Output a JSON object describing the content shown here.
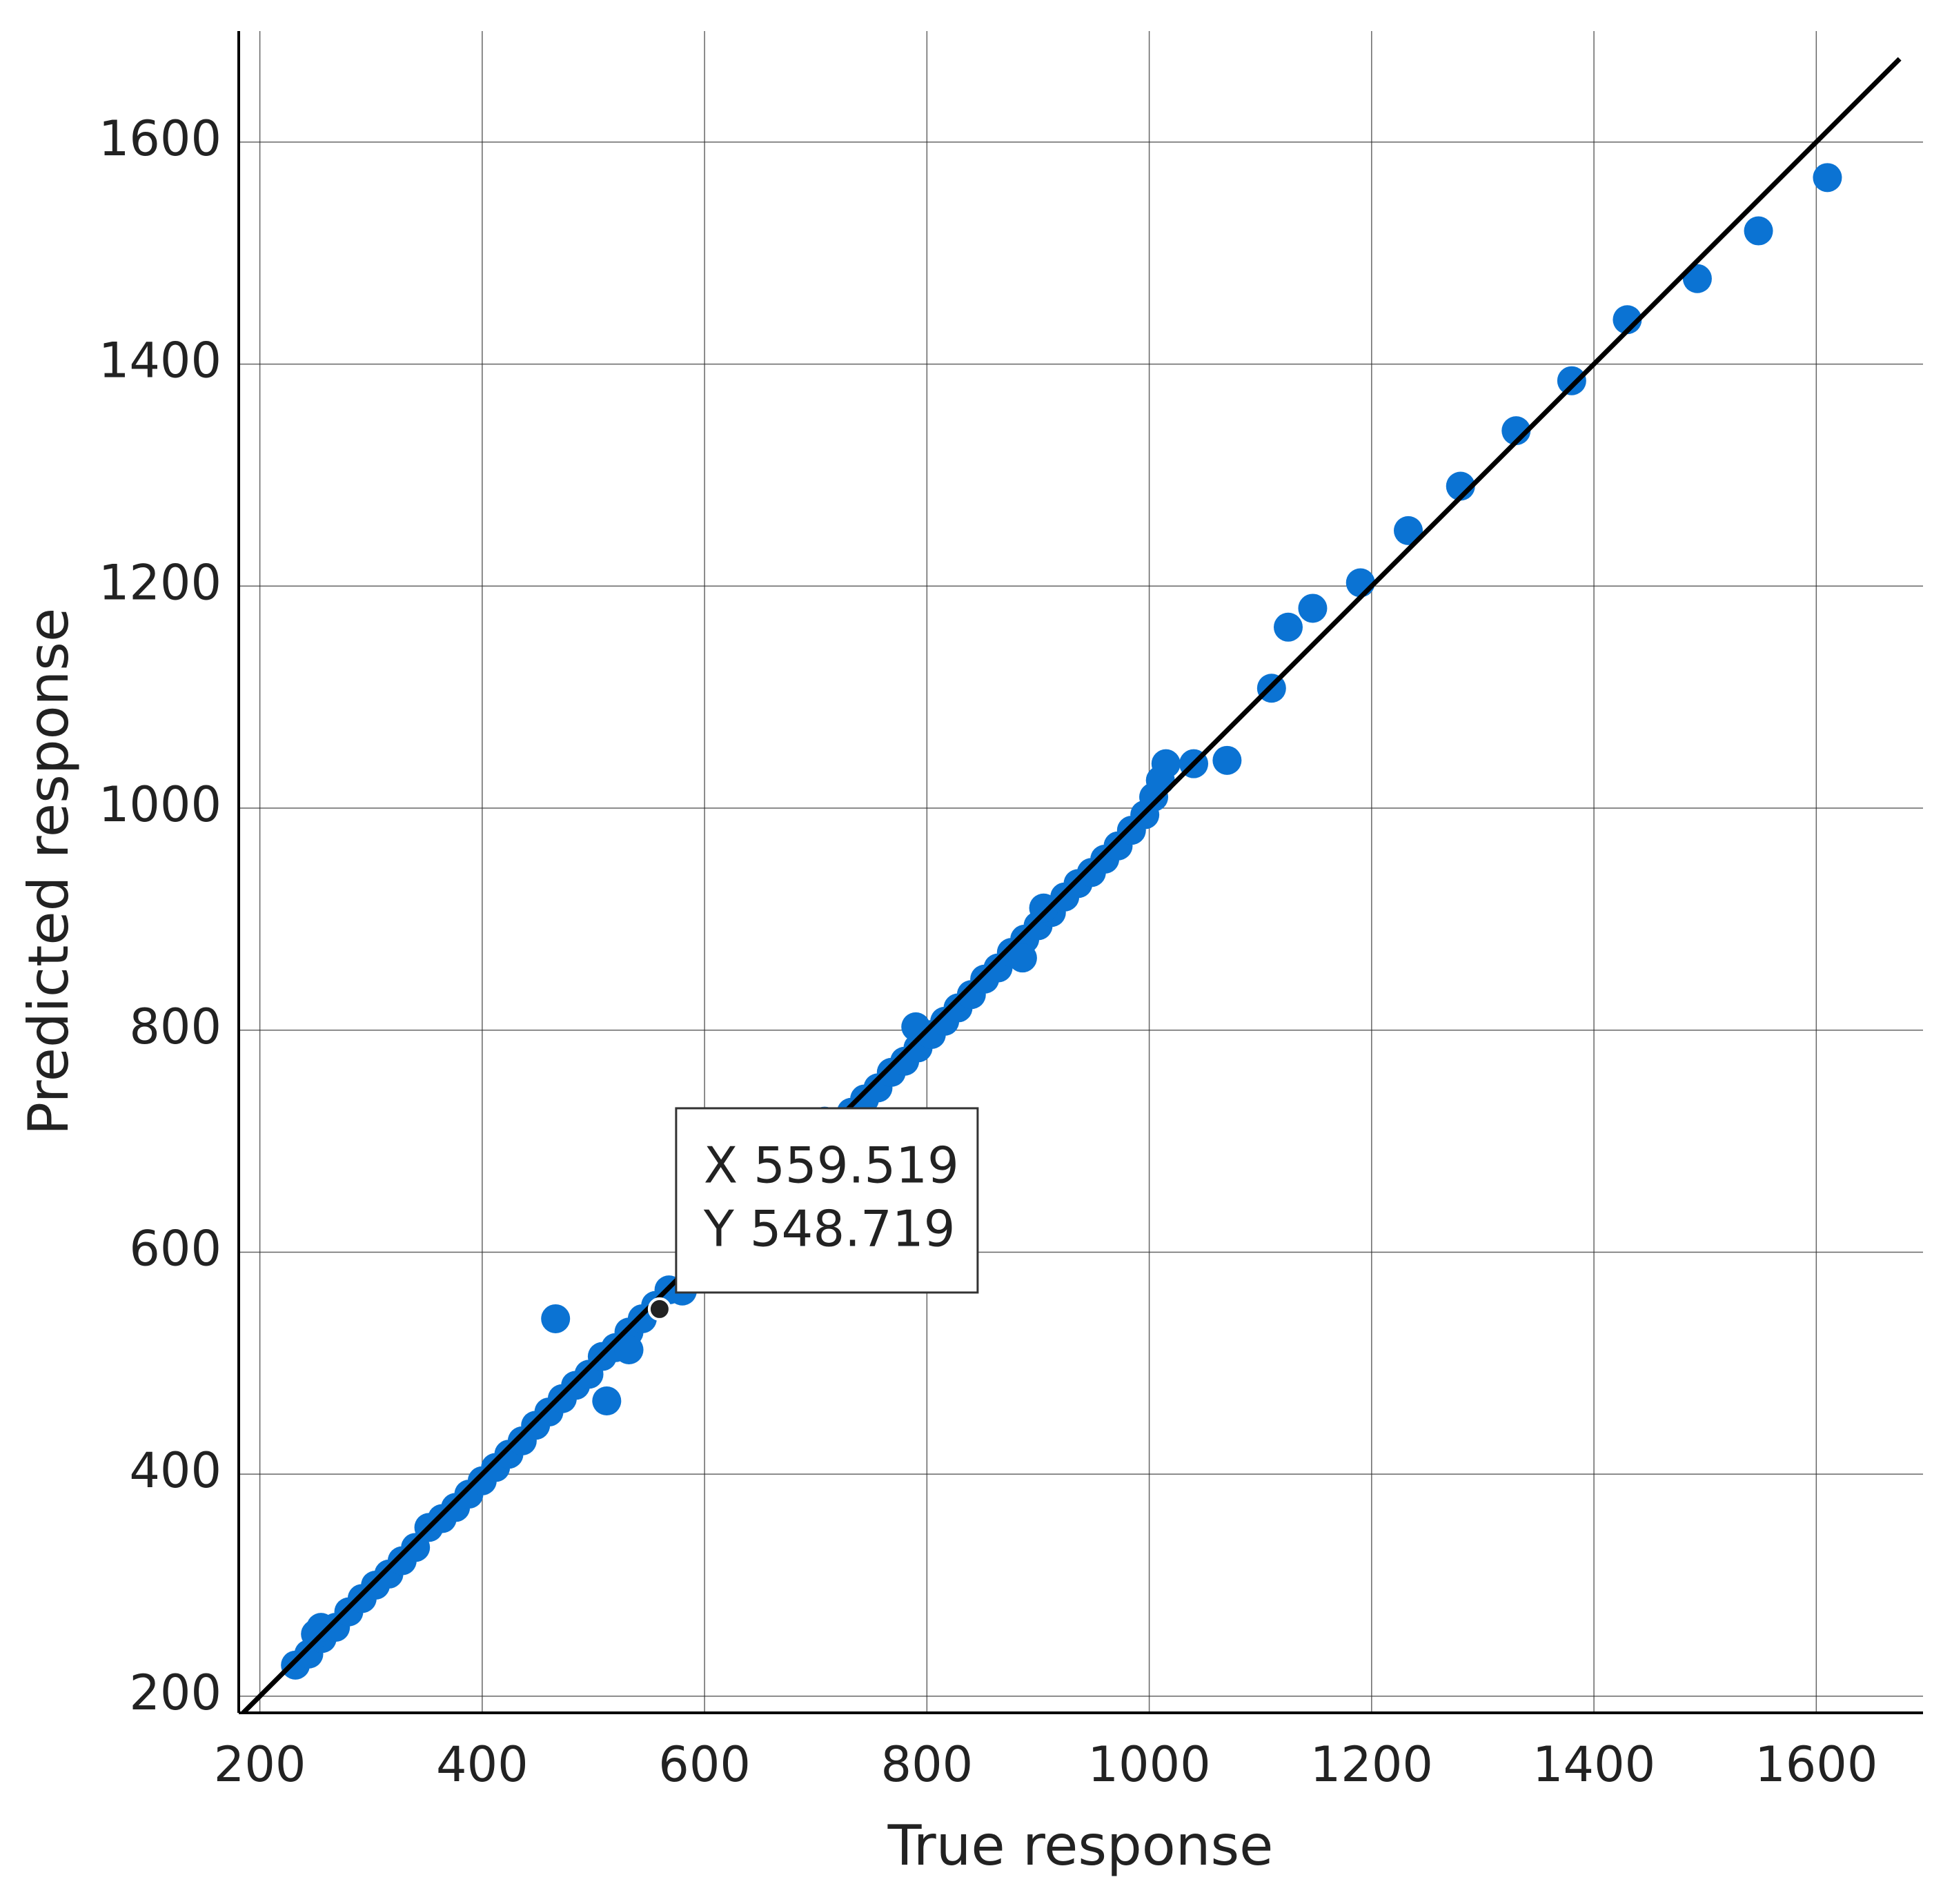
{
  "chart_data": {
    "type": "scatter",
    "x_label": "True response",
    "y_label": "Predicted response",
    "xlim": [
      181,
      1696
    ],
    "ylim": [
      185,
      1700
    ],
    "xticks": [
      200,
      400,
      600,
      800,
      1000,
      1200,
      1400,
      1600
    ],
    "yticks": [
      200,
      400,
      600,
      800,
      1000,
      1200,
      1400,
      1600
    ],
    "grid": true,
    "series": [
      {
        "color": "#0b73d3",
        "x": [
          232,
          244,
          256,
          268,
          280,
          292,
          304,
          316,
          328,
          340,
          352,
          364,
          376,
          388,
          400,
          412,
          424,
          436,
          448,
          460,
          472,
          484,
          496,
          508,
          520,
          532,
          544,
          556,
          568,
          580,
          708,
          720,
          732,
          744,
          756,
          768,
          780,
          792,
          804,
          816,
          828,
          840,
          852,
          864,
          876,
          888,
          900,
          912,
          924,
          936,
          948,
          960,
          972,
          984,
          996,
          1004,
          1010,
          250,
          255,
          466,
          512,
          532,
          790,
          886,
          905,
          1015,
          1040,
          1070,
          1110,
          1125,
          1147,
          1190,
          1233,
          1280,
          1330,
          1380,
          1430,
          1493,
          1548,
          1610
        ],
        "y": [
          228,
          238,
          252,
          262,
          276,
          288,
          300,
          310,
          322,
          334,
          352,
          360,
          370,
          382,
          394,
          406,
          418,
          430,
          444,
          456,
          468,
          480,
          490,
          506,
          514,
          528,
          540,
          552,
          566,
          565,
          718,
          716,
          726,
          738,
          748,
          762,
          772,
          784,
          796,
          808,
          820,
          832,
          846,
          856,
          870,
          882,
          894,
          906,
          920,
          932,
          942,
          954,
          966,
          980,
          994,
          1010,
          1025,
          256,
          262,
          540,
          466,
          512,
          803,
          865,
          910,
          1040,
          1040,
          1043,
          1108,
          1163,
          1180,
          1203,
          1250,
          1290,
          1340,
          1385,
          1440,
          1477,
          1520,
          1568
        ]
      }
    ],
    "reference_line": {
      "x": [
        185,
        1675
      ],
      "y": [
        185,
        1675
      ],
      "color": "#000000"
    },
    "tooltip": {
      "x": 559.519,
      "y": 548.719,
      "x_label": "X 559.519",
      "y_label": "Y 548.719"
    }
  }
}
